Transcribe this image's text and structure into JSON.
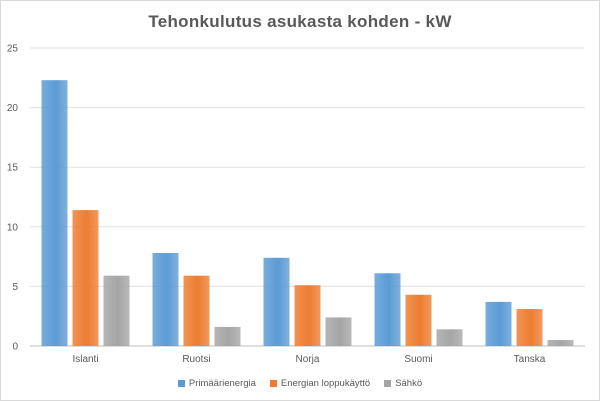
{
  "chart_data": {
    "type": "bar",
    "title": "Tehonkulutus  asukasta  kohden - kW",
    "categories": [
      "Islanti",
      "Ruotsi",
      "Norja",
      "Suomi",
      "Tanska"
    ],
    "series": [
      {
        "name": "Primäärienergia",
        "color": "#5b9bd5",
        "values": [
          22.3,
          7.8,
          7.4,
          6.1,
          3.7
        ]
      },
      {
        "name": "Energian loppukäyttö",
        "color": "#ed7d31",
        "values": [
          11.4,
          5.9,
          5.1,
          4.3,
          3.1
        ]
      },
      {
        "name": "Sähkö",
        "color": "#a5a5a5",
        "values": [
          5.9,
          1.6,
          2.4,
          1.4,
          0.5
        ]
      }
    ],
    "ylim": [
      0,
      25
    ],
    "yticks": [
      0,
      5,
      10,
      15,
      20,
      25
    ],
    "grid": true,
    "legend_position": "bottom"
  }
}
